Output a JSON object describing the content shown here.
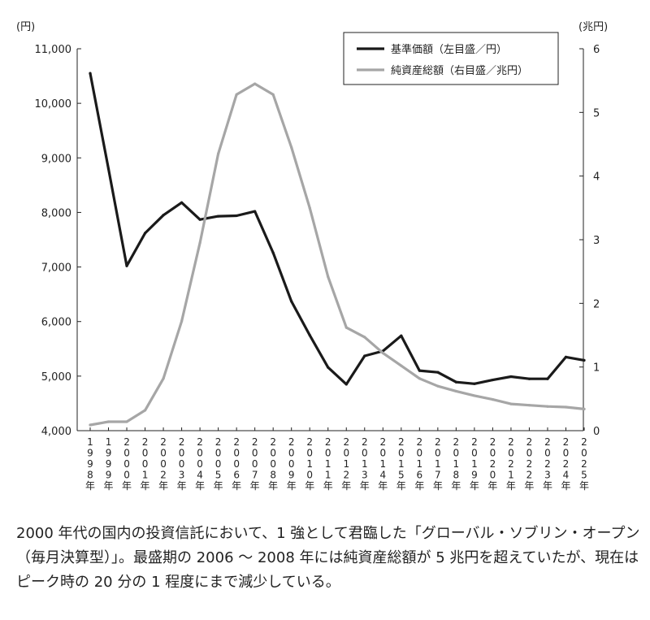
{
  "chart_data": {
    "type": "line",
    "left_unit": "(円)",
    "right_unit": "(兆円)",
    "x": [
      "1998年",
      "1999年",
      "2000年",
      "2001年",
      "2002年",
      "2003年",
      "2004年",
      "2005年",
      "2006年",
      "2007年",
      "2008年",
      "2009年",
      "2010年",
      "2011年",
      "2012年",
      "2013年",
      "2014年",
      "2015年",
      "2016年",
      "2017年",
      "2018年",
      "2019年",
      "2020年",
      "2021年",
      "2022年",
      "2023年",
      "2024年",
      "2025年"
    ],
    "series": [
      {
        "name": "基準価額（左目盛／円）",
        "axis": "left",
        "color": "#1a1a1a",
        "values": [
          10550,
          8800,
          7020,
          7620,
          7950,
          8180,
          7870,
          7930,
          7940,
          8020,
          7260,
          6370,
          5750,
          5160,
          4850,
          5370,
          5460,
          5740,
          5100,
          5070,
          4890,
          4860,
          4930,
          4990,
          4950,
          4950,
          5350,
          5290
        ]
      },
      {
        "name": "純資産総額（右目盛／兆円）",
        "axis": "right",
        "color": "#a6a6a6",
        "values": [
          0.09,
          0.14,
          0.14,
          0.32,
          0.82,
          1.72,
          2.95,
          4.35,
          5.28,
          5.45,
          5.28,
          4.45,
          3.5,
          2.42,
          1.62,
          1.47,
          1.22,
          1.02,
          0.82,
          0.7,
          0.62,
          0.55,
          0.49,
          0.42,
          0.4,
          0.38,
          0.37,
          0.34
        ]
      }
    ],
    "y_left": {
      "lim": [
        4000,
        11000
      ],
      "ticks": [
        4000,
        5000,
        6000,
        7000,
        8000,
        9000,
        10000,
        11000
      ],
      "tick_labels": [
        "4,000",
        "5,000",
        "6,000",
        "7,000",
        "8,000",
        "9,000",
        "10,000",
        "11,000"
      ]
    },
    "y_right": {
      "lim": [
        0,
        6
      ],
      "ticks": [
        0,
        1,
        2,
        3,
        4,
        5,
        6
      ],
      "tick_labels": [
        "0",
        "1",
        "2",
        "3",
        "4",
        "5",
        "6"
      ]
    },
    "legend_position": "top-right",
    "grid": false
  },
  "caption": "2000 年代の国内の投資信託において、1 強として君臨した「グローバル・ソブリン・オープン（毎月決算型）」。最盛期の 2006 〜 2008 年には純資産総額が 5 兆円を超えていたが、現在はピーク時の 20 分の 1 程度にまで減少している。"
}
